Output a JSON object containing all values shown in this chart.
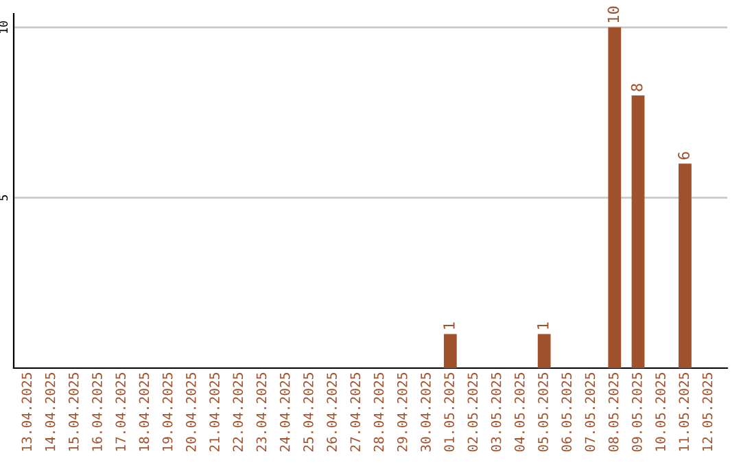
{
  "chart_data": {
    "type": "bar",
    "categories": [
      "13.04.2025",
      "14.04.2025",
      "15.04.2025",
      "16.04.2025",
      "17.04.2025",
      "18.04.2025",
      "19.04.2025",
      "20.04.2025",
      "21.04.2025",
      "22.04.2025",
      "23.04.2025",
      "24.04.2025",
      "25.04.2025",
      "26.04.2025",
      "27.04.2025",
      "28.04.2025",
      "29.04.2025",
      "30.04.2025",
      "01.05.2025",
      "02.05.2025",
      "03.05.2025",
      "04.05.2025",
      "05.05.2025",
      "06.05.2025",
      "07.05.2025",
      "08.05.2025",
      "09.05.2025",
      "10.05.2025",
      "11.05.2025",
      "12.05.2025"
    ],
    "values": [
      0,
      0,
      0,
      0,
      0,
      0,
      0,
      0,
      0,
      0,
      0,
      0,
      0,
      0,
      0,
      0,
      0,
      0,
      1,
      0,
      0,
      0,
      1,
      0,
      0,
      10,
      8,
      0,
      6,
      0
    ],
    "value_labels": [
      null,
      null,
      null,
      null,
      null,
      null,
      null,
      null,
      null,
      null,
      null,
      null,
      null,
      null,
      null,
      null,
      null,
      null,
      "1",
      null,
      null,
      null,
      "1",
      null,
      null,
      "10",
      "8",
      null,
      "6",
      null
    ],
    "color": "#a0522d",
    "ylim": [
      0,
      10.4
    ],
    "yticks": [
      5,
      10
    ],
    "grid": "y",
    "legend": false
  }
}
